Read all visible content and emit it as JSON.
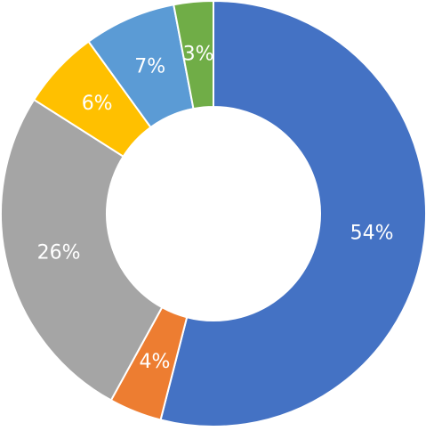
{
  "chart_data": {
    "type": "donut",
    "values": [
      54,
      4,
      26,
      6,
      7,
      3
    ],
    "value_labels": [
      "54%",
      "4%",
      "26%",
      "6%",
      "7%",
      "3%"
    ],
    "colors": [
      "#4472c4",
      "#ed7d31",
      "#a5a5a5",
      "#ffc000",
      "#5b9bd5",
      "#70ad47"
    ]
  }
}
